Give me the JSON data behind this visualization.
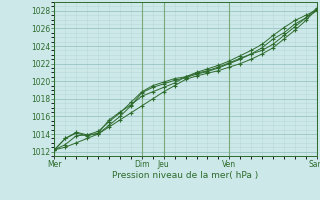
{
  "bg_color": "#cce8e8",
  "grid_major_color": "#99c4c4",
  "grid_minor_color": "#b8d8d8",
  "line_color": "#2d6b2d",
  "xlabel": "Pression niveau de la mer( hPa )",
  "ylim": [
    1011.5,
    1029.0
  ],
  "yticks": [
    1012,
    1014,
    1016,
    1018,
    1020,
    1022,
    1024,
    1026,
    1028
  ],
  "day_labels": [
    "Mer",
    "Dim",
    "Jeu",
    "Ven",
    "Sam"
  ],
  "day_positions": [
    0.0,
    4.0,
    5.0,
    8.0,
    12.0
  ],
  "vline_color": "#7aaa7a",
  "lines": [
    {
      "x": [
        0,
        0.5,
        1.0,
        1.5,
        2.0,
        2.5,
        3.0,
        3.5,
        4.0,
        4.5,
        5.0,
        5.5,
        6.0,
        6.5,
        7.0,
        7.5,
        8.0,
        8.5,
        9.0,
        9.5,
        10.0,
        10.5,
        11.0,
        11.5,
        12.0
      ],
      "y": [
        1012.2,
        1012.5,
        1013.0,
        1013.5,
        1014.0,
        1014.8,
        1015.6,
        1016.4,
        1017.2,
        1018.0,
        1018.8,
        1019.5,
        1020.2,
        1020.6,
        1020.9,
        1021.2,
        1021.6,
        1022.0,
        1022.5,
        1023.1,
        1023.8,
        1024.8,
        1025.8,
        1026.9,
        1028.2
      ]
    },
    {
      "x": [
        0,
        0.5,
        1.0,
        1.5,
        2.0,
        2.5,
        3.0,
        3.5,
        4.0,
        4.5,
        5.0,
        5.5,
        6.0,
        6.5,
        7.0,
        7.5,
        8.0,
        8.5,
        9.0,
        9.5,
        10.0,
        10.5,
        11.0,
        11.5,
        12.0
      ],
      "y": [
        1012.2,
        1013.5,
        1014.1,
        1013.8,
        1014.1,
        1015.6,
        1016.5,
        1017.3,
        1018.3,
        1018.8,
        1019.3,
        1019.8,
        1020.5,
        1020.9,
        1021.2,
        1021.6,
        1022.1,
        1022.6,
        1023.1,
        1023.5,
        1024.2,
        1025.2,
        1026.2,
        1027.2,
        1028.3
      ]
    },
    {
      "x": [
        0,
        0.5,
        1.0,
        1.5,
        2.0,
        2.5,
        3.0,
        3.5,
        4.0,
        4.5,
        5.0,
        5.5,
        6.0,
        6.5,
        7.0,
        7.5,
        8.0,
        8.5,
        9.0,
        9.5,
        10.0,
        10.5,
        11.0,
        11.5,
        12.0
      ],
      "y": [
        1012.2,
        1013.5,
        1014.2,
        1013.9,
        1014.3,
        1015.4,
        1016.4,
        1017.6,
        1018.8,
        1019.5,
        1019.9,
        1020.3,
        1020.5,
        1021.0,
        1021.4,
        1021.8,
        1022.3,
        1022.9,
        1023.5,
        1024.2,
        1025.2,
        1026.1,
        1026.9,
        1027.5,
        1028.1
      ]
    },
    {
      "x": [
        0,
        0.5,
        1.0,
        1.5,
        2.0,
        2.5,
        3.0,
        3.5,
        4.0,
        4.5,
        5.0,
        5.5,
        6.0,
        6.5,
        7.0,
        7.5,
        8.0,
        8.5,
        9.0,
        9.5,
        10.0,
        10.5,
        11.0,
        11.5,
        12.0
      ],
      "y": [
        1012.2,
        1012.8,
        1013.8,
        1013.9,
        1014.0,
        1015.0,
        1016.0,
        1017.2,
        1018.7,
        1019.3,
        1019.7,
        1020.1,
        1020.4,
        1020.8,
        1021.1,
        1021.5,
        1022.0,
        1022.5,
        1023.1,
        1023.8,
        1024.8,
        1025.5,
        1026.5,
        1027.2,
        1028.0
      ]
    }
  ]
}
